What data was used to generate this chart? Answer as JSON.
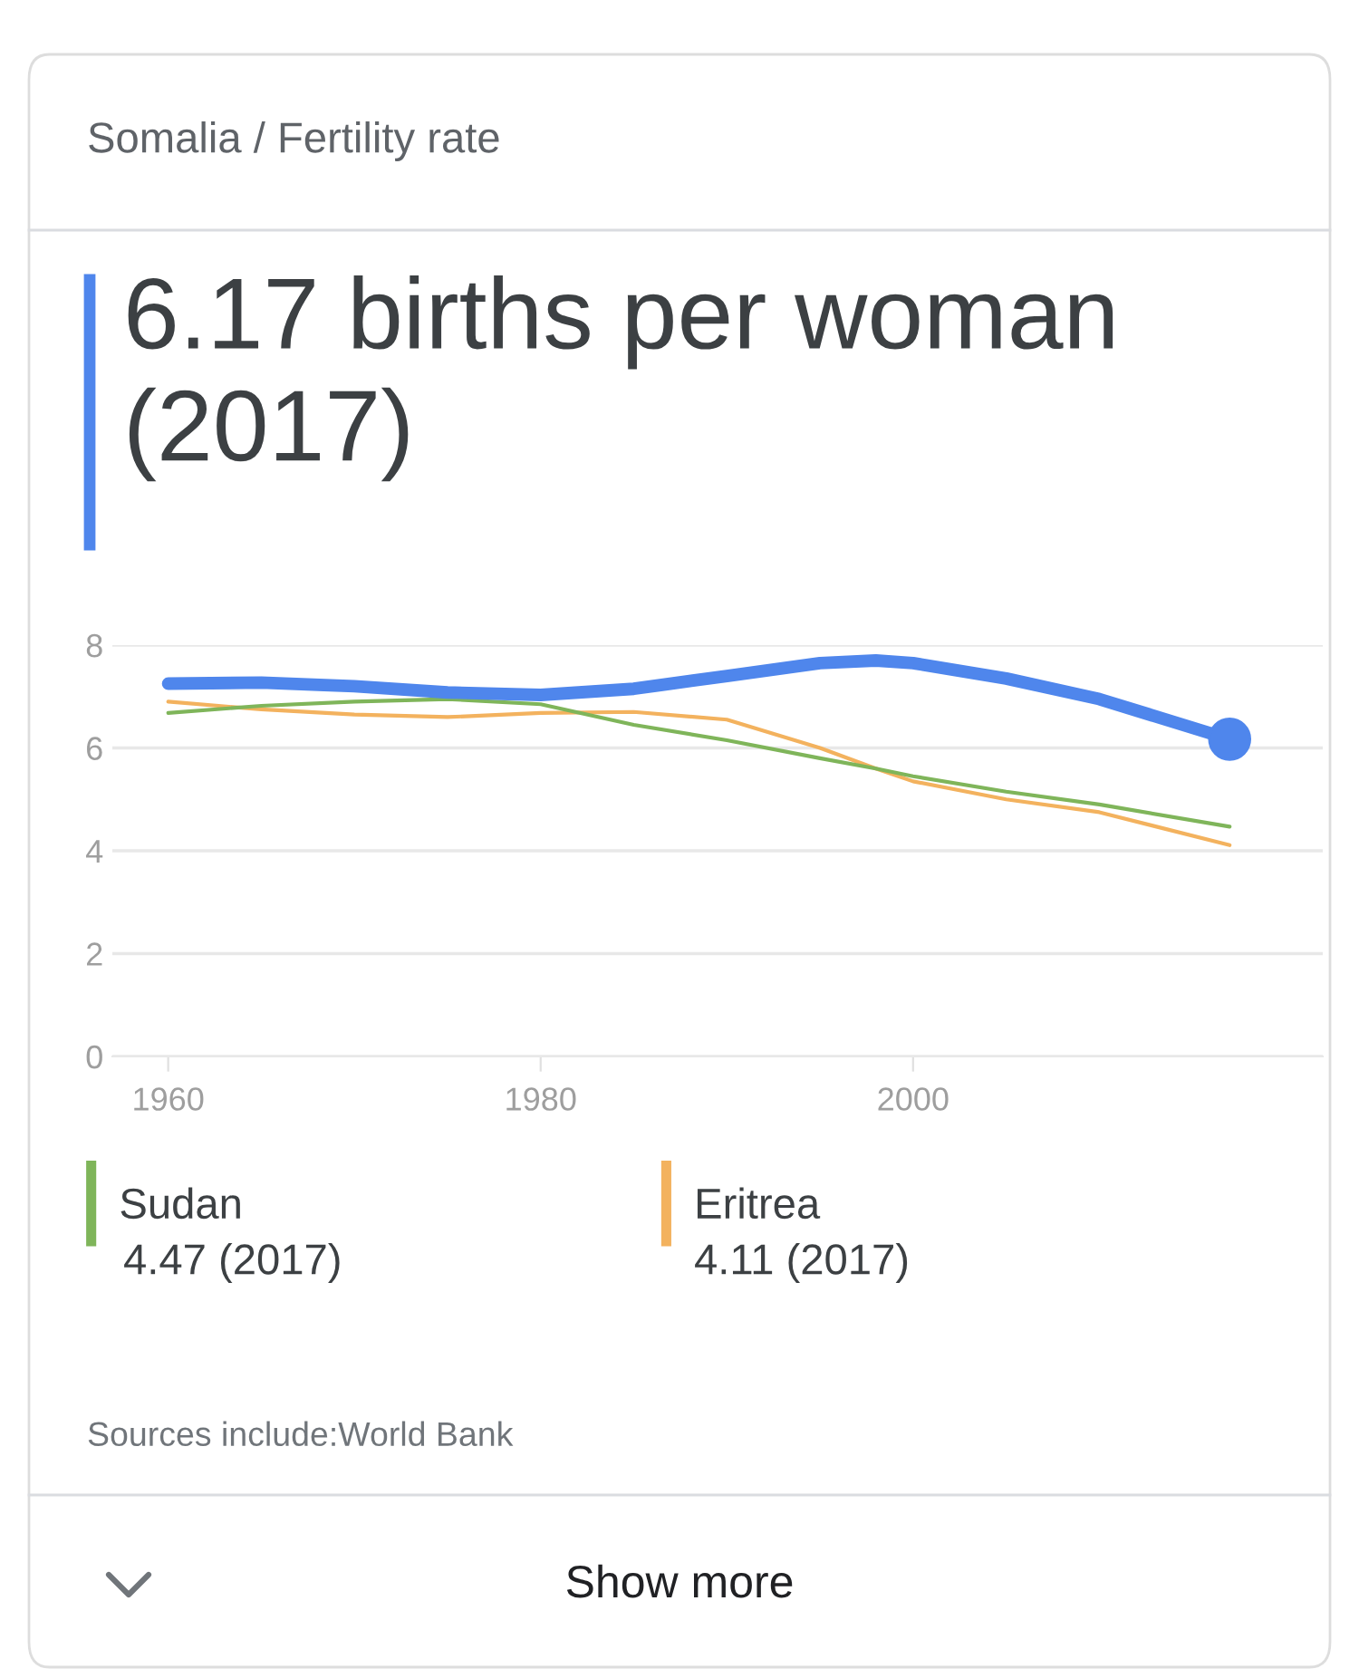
{
  "chart_data": {
    "type": "line",
    "title": "Somalia / Fertility rate",
    "subtitle": "6.17 births per woman (2017)",
    "x": [
      1960,
      1965,
      1970,
      1975,
      1980,
      1985,
      1990,
      1995,
      1998,
      2000,
      2005,
      2010,
      2017
    ],
    "series": [
      {
        "color": "#4f86ec",
        "values": [
          7.25,
          7.27,
          7.2,
          7.08,
          7.03,
          7.15,
          7.4,
          7.65,
          7.7,
          7.65,
          7.35,
          6.95,
          6.17
        ]
      },
      {
        "type": "scatter",
        "color": "#4f86ec",
        "marker": "circle",
        "x": [
          2017
        ],
        "values": [
          6.17
        ]
      },
      {
        "name": "Sudan",
        "color": "#7fb55a",
        "values": [
          6.68,
          6.82,
          6.9,
          6.95,
          6.85,
          6.45,
          6.15,
          5.8,
          5.6,
          5.45,
          5.15,
          4.9,
          4.47
        ]
      },
      {
        "name": "Eritrea",
        "color": "#f3b25e",
        "values": [
          6.9,
          6.75,
          6.65,
          6.6,
          6.68,
          6.7,
          6.55,
          6.0,
          5.6,
          5.35,
          5.0,
          4.75,
          4.11
        ]
      }
    ],
    "xlim": [
      1957,
      2022
    ],
    "ylim": [
      0,
      8
    ],
    "xticks": [
      1960,
      1980,
      2000
    ],
    "yticks": [
      0,
      2,
      4,
      6,
      8
    ],
    "grid": "y",
    "legend": "bottom",
    "annotations": [
      "4.47 (2017)",
      "4.11 (2017)",
      "Sources include:World Bank",
      "Show more"
    ]
  }
}
